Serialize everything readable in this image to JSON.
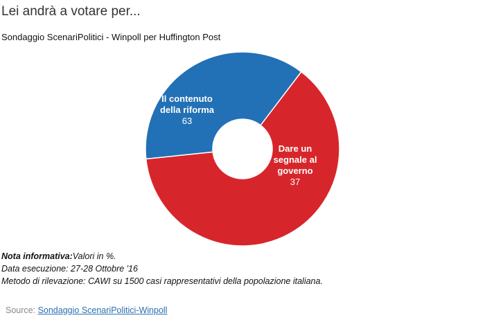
{
  "header": {
    "title": "Lei andrà a votare per...",
    "subtitle": "Sondaggio ScenariPolitici - Winpoll per Huffington Post"
  },
  "chart_data": {
    "type": "pie",
    "donut": true,
    "slices": [
      {
        "label_lines": [
          "Il contenuto",
          "della riforma"
        ],
        "value": 63,
        "value_label": "63",
        "color": "#d7262b"
      },
      {
        "label_lines": [
          "Dare un",
          "segnale al",
          "governo"
        ],
        "value": 37,
        "value_label": "37",
        "color": "#2270b5"
      }
    ]
  },
  "notes": {
    "heading": "Nota informativa:",
    "text": "Valori in %.",
    "date_line": "Data esecuzione: 27-28 Ottobre '16",
    "method_line": "Metodo di rilevazione: CAWI su 1500 casi rappresentativi della popolazione italiana."
  },
  "source": {
    "prefix": "Source: ",
    "link_text": "Sondaggio ScenariPolitici-Winpoll"
  }
}
